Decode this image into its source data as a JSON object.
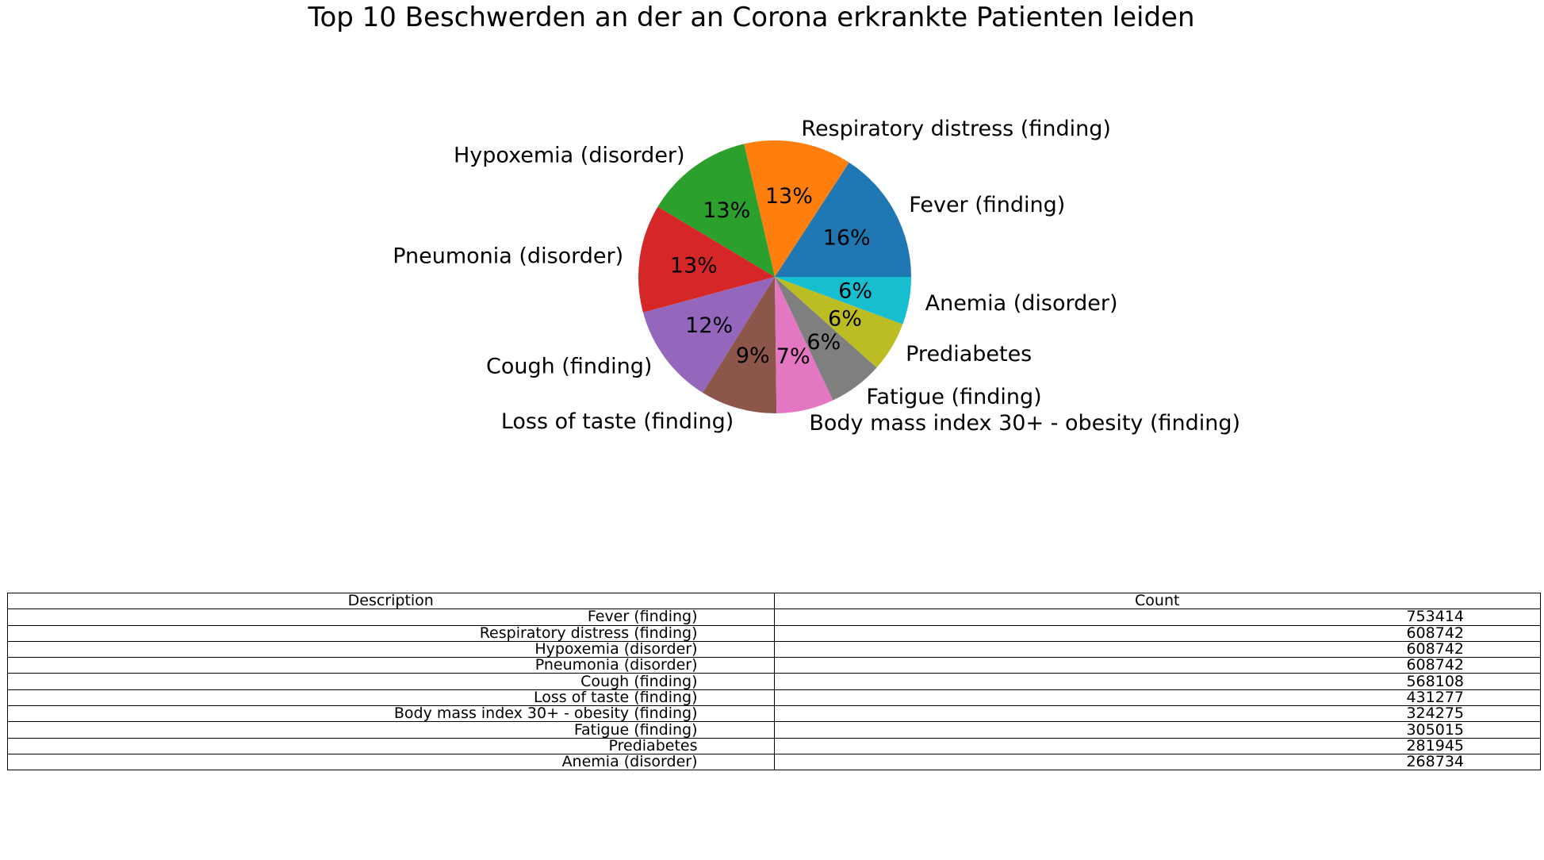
{
  "chart_data": {
    "type": "pie",
    "title": "Top 10 Beschwerden an der an Corona erkrankte Patienten leiden",
    "slices": [
      {
        "label": "Fever (finding)",
        "value": 753414,
        "pct_label": "16%",
        "color": "#1f77b4"
      },
      {
        "label": "Respiratory distress (finding)",
        "value": 608742,
        "pct_label": "13%",
        "color": "#ff7f0e"
      },
      {
        "label": "Hypoxemia (disorder)",
        "value": 608742,
        "pct_label": "13%",
        "color": "#2ca02c"
      },
      {
        "label": "Pneumonia (disorder)",
        "value": 608742,
        "pct_label": "13%",
        "color": "#d62728"
      },
      {
        "label": "Cough (finding)",
        "value": 568108,
        "pct_label": "12%",
        "color": "#9467bd"
      },
      {
        "label": "Loss of taste (finding)",
        "value": 431277,
        "pct_label": "9%",
        "color": "#8c564b"
      },
      {
        "label": "Body mass index 30+ - obesity (finding)",
        "value": 324275,
        "pct_label": "7%",
        "color": "#e377c2"
      },
      {
        "label": "Fatigue (finding)",
        "value": 305015,
        "pct_label": "6%",
        "color": "#7f7f7f"
      },
      {
        "label": "Prediabetes",
        "value": 281945,
        "pct_label": "6%",
        "color": "#bcbd22"
      },
      {
        "label": "Anemia (disorder)",
        "value": 268734,
        "pct_label": "6%",
        "color": "#17becf"
      }
    ]
  },
  "table": {
    "columns": [
      "Description",
      "Count"
    ],
    "rows": [
      [
        "Fever (finding)",
        "753414"
      ],
      [
        "Respiratory distress (finding)",
        "608742"
      ],
      [
        "Hypoxemia (disorder)",
        "608742"
      ],
      [
        "Pneumonia (disorder)",
        "608742"
      ],
      [
        "Cough (finding)",
        "568108"
      ],
      [
        "Loss of taste (finding)",
        "431277"
      ],
      [
        "Body mass index 30+ - obesity (finding)",
        "324275"
      ],
      [
        "Fatigue (finding)",
        "305015"
      ],
      [
        "Prediabetes",
        "281945"
      ],
      [
        "Anemia (disorder)",
        "268734"
      ]
    ]
  }
}
